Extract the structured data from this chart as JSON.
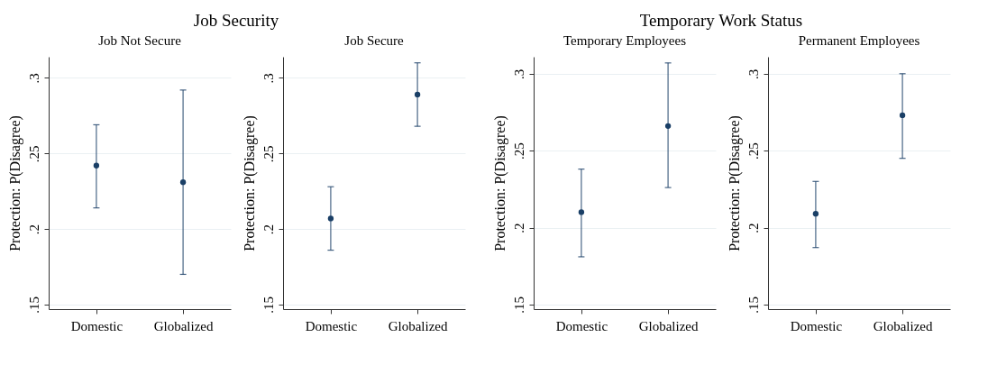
{
  "chart_data": [
    {
      "type": "scatter",
      "title": "Job Security",
      "subtitle": "Job Not Secure",
      "ylabel": "Protection: P(Disagree)",
      "categories": [
        "Domestic",
        "Globalized"
      ],
      "values": [
        0.242,
        0.231
      ],
      "errors": [
        [
          0.214,
          0.269
        ],
        [
          0.17,
          0.292
        ]
      ],
      "color": "#1a3f66",
      "marker": "circle",
      "grid": "y",
      "ylim": [
        0.147,
        0.314
      ],
      "yticks": [
        {
          "value": 0.15,
          "label": ".15"
        },
        {
          "value": 0.2,
          "label": ".2"
        },
        {
          "value": 0.25,
          "label": ".25"
        },
        {
          "value": 0.3,
          "label": ".3"
        }
      ]
    },
    {
      "type": "scatter",
      "subtitle": "Job Secure",
      "ylabel": "Protection: P(Disagree)",
      "categories": [
        "Domestic",
        "Globalized"
      ],
      "values": [
        0.207,
        0.289
      ],
      "errors": [
        [
          0.186,
          0.228
        ],
        [
          0.268,
          0.31
        ]
      ],
      "color": "#1a3f66",
      "marker": "circle",
      "grid": "y",
      "ylim": [
        0.147,
        0.314
      ],
      "yticks": [
        {
          "value": 0.15,
          "label": ".15"
        },
        {
          "value": 0.2,
          "label": ".2"
        },
        {
          "value": 0.25,
          "label": ".25"
        },
        {
          "value": 0.3,
          "label": ".3"
        }
      ]
    },
    {
      "type": "scatter",
      "title": "Temporary Work Status",
      "subtitle": "Temporary Employees",
      "ylabel": "Protection: P(Disagree)",
      "categories": [
        "Domestic",
        "Globalized"
      ],
      "values": [
        0.21,
        0.266
      ],
      "errors": [
        [
          0.181,
          0.238
        ],
        [
          0.226,
          0.307
        ]
      ],
      "color": "#1a3f66",
      "marker": "circle",
      "grid": "y",
      "ylim": [
        0.147,
        0.311
      ],
      "yticks": [
        {
          "value": 0.15,
          "label": ".15"
        },
        {
          "value": 0.2,
          "label": ".2"
        },
        {
          "value": 0.25,
          "label": ".25"
        },
        {
          "value": 0.3,
          "label": ".3"
        }
      ]
    },
    {
      "type": "scatter",
      "subtitle": "Permanent Employees",
      "ylabel": "Protection: P(Disagree)",
      "categories": [
        "Domestic",
        "Globalized"
      ],
      "values": [
        0.209,
        0.273
      ],
      "errors": [
        [
          0.187,
          0.23
        ],
        [
          0.245,
          0.3
        ]
      ],
      "color": "#1a3f66",
      "marker": "circle",
      "grid": "y",
      "ylim": [
        0.147,
        0.311
      ],
      "yticks": [
        {
          "value": 0.15,
          "label": ".15"
        },
        {
          "value": 0.2,
          "label": ".2"
        },
        {
          "value": 0.25,
          "label": ".25"
        },
        {
          "value": 0.3,
          "label": ".3"
        }
      ]
    }
  ]
}
